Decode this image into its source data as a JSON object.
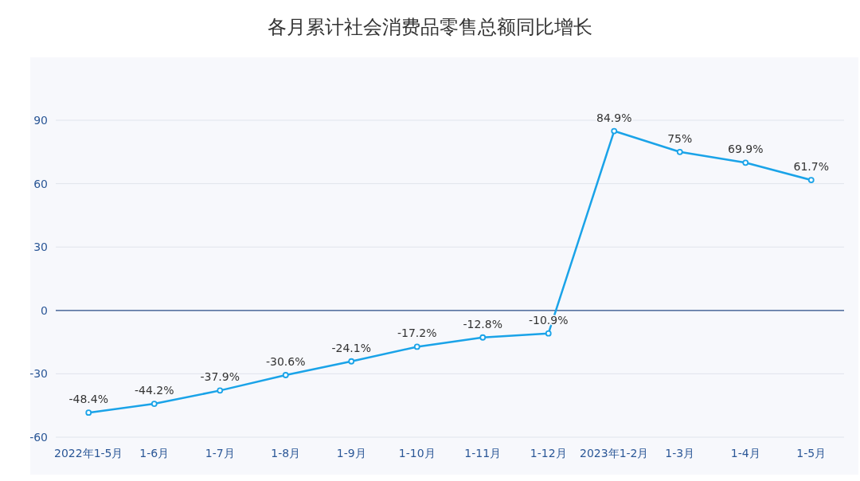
{
  "chart_data": {
    "type": "line",
    "title": "各月累计社会消费品零售总额同比增长",
    "categories": [
      "2022年1-5月",
      "1-6月",
      "1-7月",
      "1-8月",
      "1-9月",
      "1-10月",
      "1-11月",
      "1-12月",
      "2023年1-2月",
      "1-3月",
      "1-4月",
      "1-5月"
    ],
    "series": [
      {
        "color": "#1aa3e8",
        "values": [
          -48.4,
          -44.2,
          -37.9,
          -30.6,
          -24.1,
          -17.2,
          -12.8,
          -10.9,
          84.9,
          75,
          69.9,
          61.7
        ],
        "value_labels": [
          "-48.4%",
          "-44.2%",
          "-37.9%",
          "-30.6%",
          "-24.1%",
          "-17.2%",
          "-12.8%",
          "-10.9%",
          "84.9%",
          "75%",
          "69.9%",
          "61.7%"
        ]
      }
    ],
    "ylim": [
      -60,
      90
    ],
    "yticks": [
      -60,
      -30,
      0,
      30,
      60,
      90
    ],
    "ref_lines": [
      {
        "axis": "y",
        "value": 0,
        "color": "#2c4f8a"
      }
    ],
    "grid": "y",
    "marker": "circle",
    "line_style": "solid"
  }
}
